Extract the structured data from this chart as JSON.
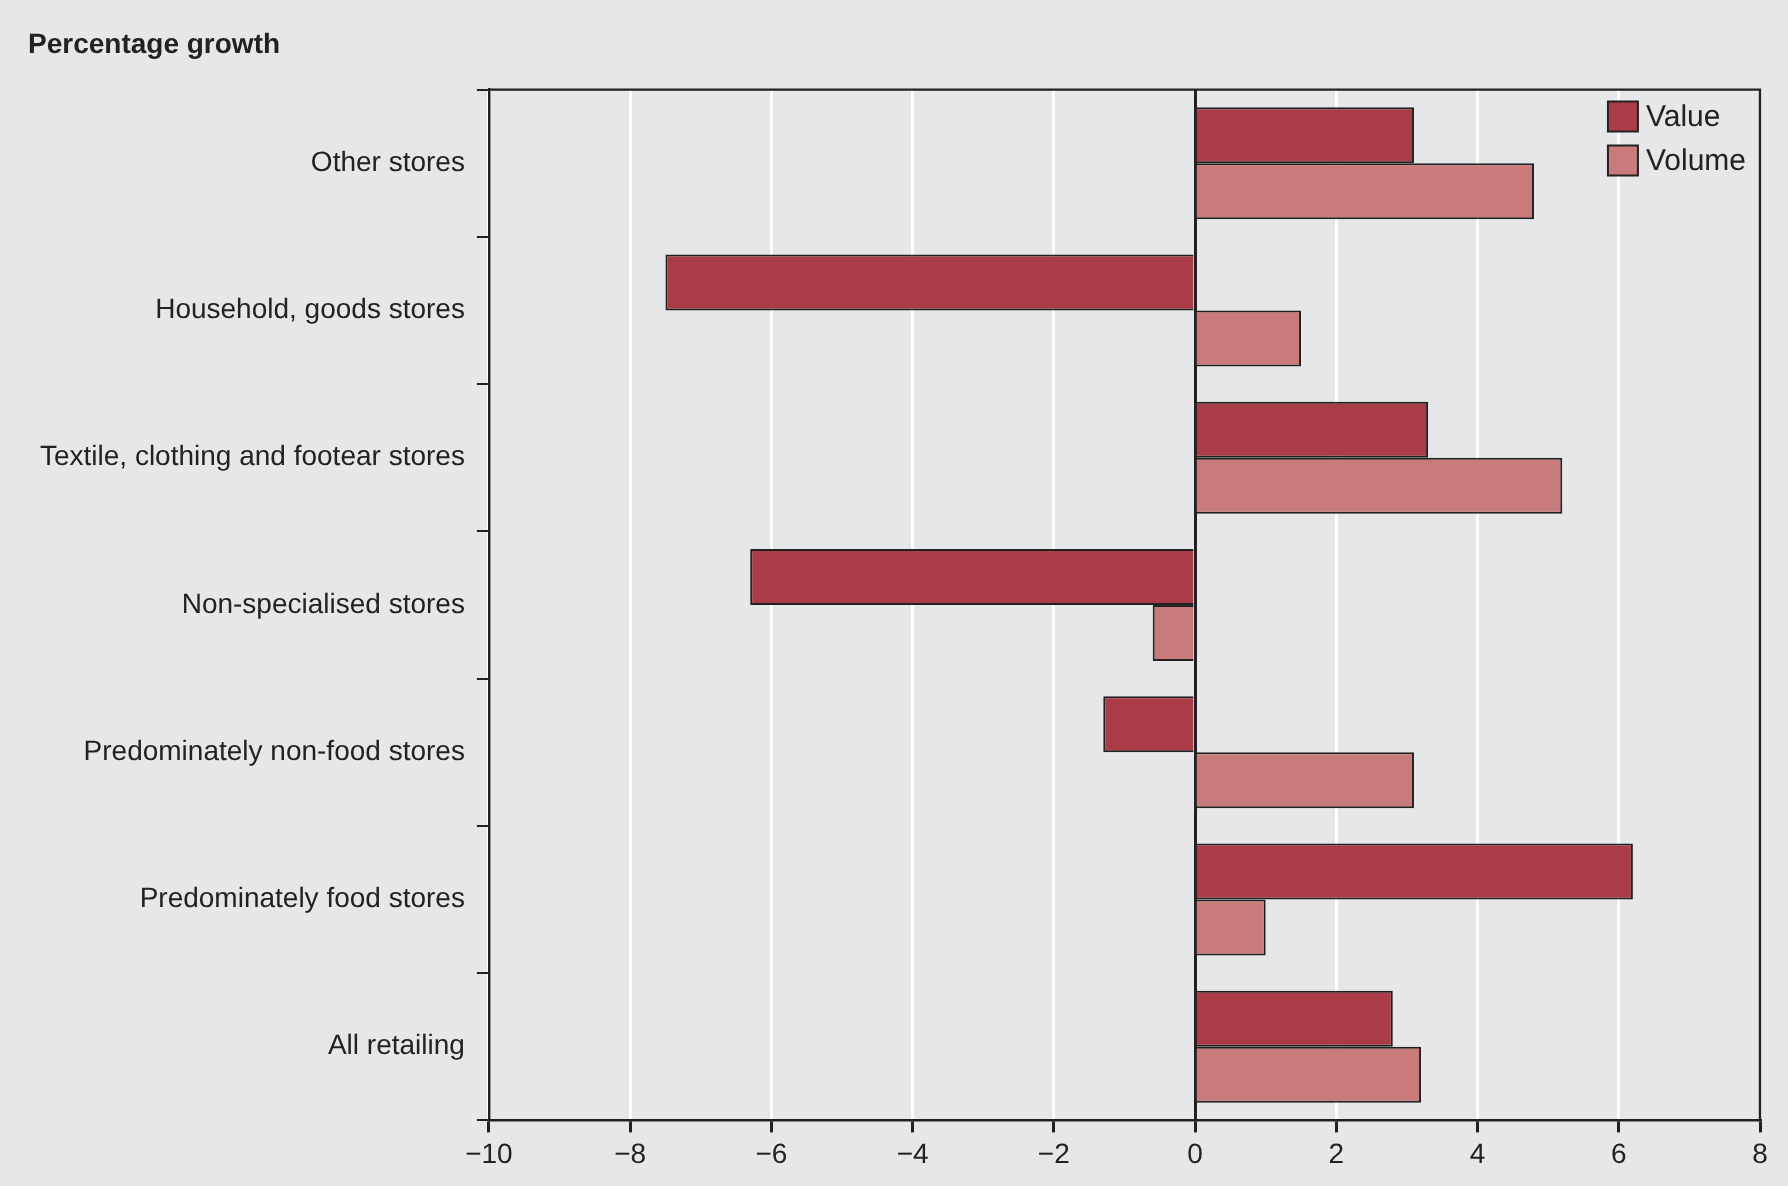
{
  "chart_data": {
    "type": "bar",
    "orientation": "horizontal",
    "title": "Percentage growth",
    "categories": [
      "Other stores",
      "Household, goods stores",
      "Textile, clothing and footear stores",
      "Non-specialised stores",
      "Predominately non-food stores",
      "Predominately food stores",
      "All retailing"
    ],
    "series": [
      {
        "name": "Value",
        "color": "#a93c47",
        "values": [
          3.1,
          -7.5,
          3.3,
          -6.3,
          -1.3,
          6.2,
          2.8
        ]
      },
      {
        "name": "Volume",
        "color": "#c97b7b",
        "values": [
          4.8,
          1.5,
          5.2,
          -0.6,
          3.1,
          1.0,
          3.2
        ]
      }
    ],
    "xlim": [
      -10,
      8
    ],
    "xticks": [
      -10,
      -8,
      -6,
      -4,
      -2,
      0,
      2,
      4,
      6,
      8
    ],
    "grid": "x",
    "legend": "top right"
  }
}
